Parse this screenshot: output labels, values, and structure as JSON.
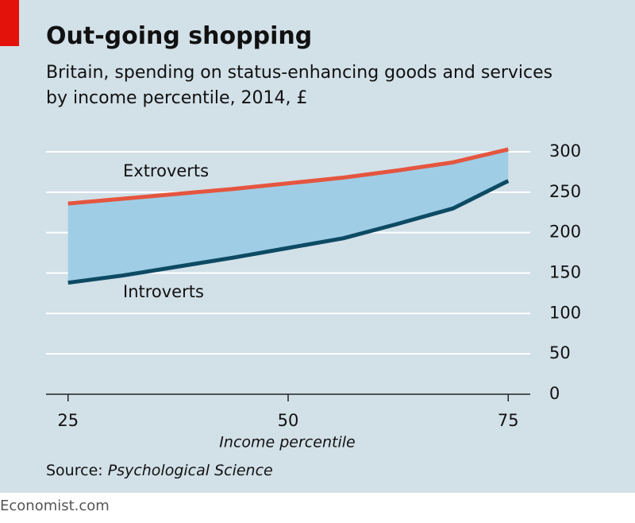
{
  "chart_data": {
    "type": "line",
    "title": "Out-going shopping",
    "subtitle": "Britain, spending on status-enhancing goods and services by income percentile, 2014, £",
    "x_label": "Income percentile",
    "source_label": "Source:",
    "source": "Psychological Science",
    "footer": "Economist.com",
    "x": [
      25,
      31.25,
      37.5,
      43.75,
      50,
      56.25,
      62.5,
      68.75,
      75
    ],
    "series": [
      {
        "name": "Extroverts",
        "color": "#e5553f",
        "values": [
          236,
          242,
          248,
          254,
          261,
          268,
          277,
          287,
          303
        ]
      },
      {
        "name": "Introverts",
        "color": "#0d4a63",
        "values": [
          138,
          147,
          158,
          169,
          181,
          193,
          211,
          230,
          264
        ]
      }
    ],
    "fill_color": "#9fcde6",
    "xlim": [
      22.5,
      77.5
    ],
    "xticks": [
      25,
      50,
      75
    ],
    "ylim": [
      0,
      300
    ],
    "yticks": [
      0,
      50,
      100,
      150,
      200,
      250,
      300
    ],
    "grid": true
  }
}
